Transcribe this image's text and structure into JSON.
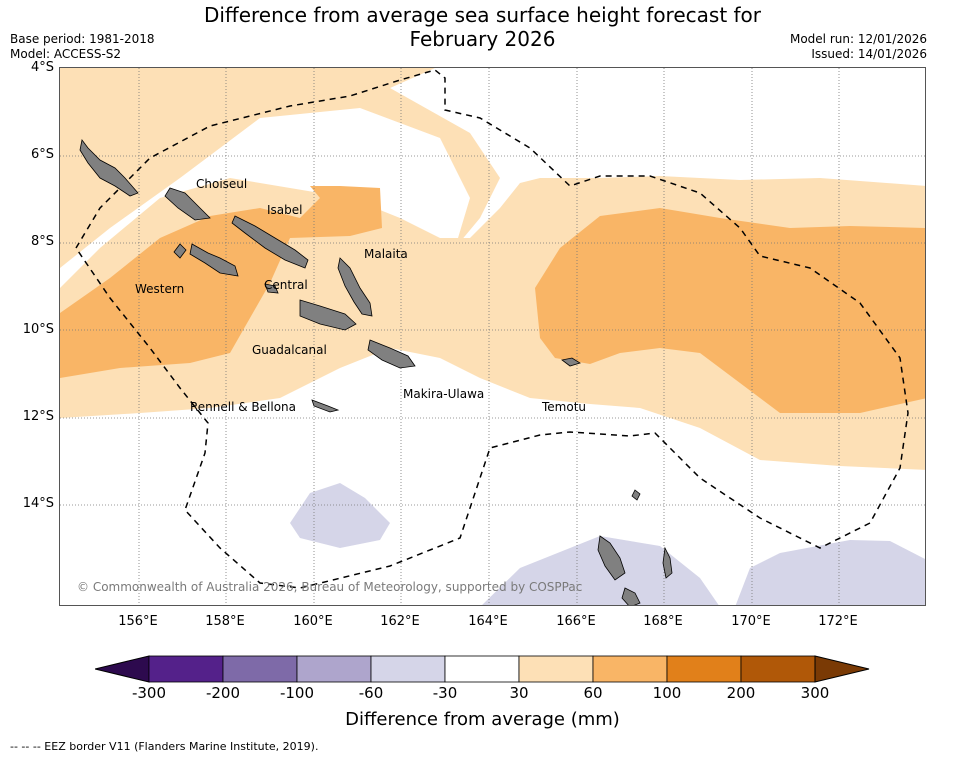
{
  "header": {
    "title_line1": "Difference from average sea surface height forecast for",
    "title_line2": "February 2026",
    "base_period": "Base period: 1981-2018",
    "model": "Model: ACCESS-S2",
    "model_run": "Model run: 12/01/2026",
    "issued": "Issued: 14/01/2026"
  },
  "map": {
    "lat_labels": [
      "4°S",
      "6°S",
      "8°S",
      "10°S",
      "12°S",
      "14°S"
    ],
    "lon_labels": [
      "156°E",
      "158°E",
      "160°E",
      "162°E",
      "164°E",
      "166°E",
      "168°E",
      "170°E",
      "172°E"
    ],
    "places": {
      "choiseul": "Choiseul",
      "isabel": "Isabel",
      "malaita": "Malaita",
      "western": "Western",
      "central": "Central",
      "guadalcanal": "Guadalcanal",
      "makira": "Makira-Ulawa",
      "rennell": "Rennell & Bellona",
      "temotu": "Temotu"
    },
    "copyright": "© Commonwealth of Australia 2026, Bureau of Meteorology, supported by COSPPac"
  },
  "colorbar": {
    "ticks": [
      "-300",
      "-200",
      "-100",
      "-60",
      "-30",
      "30",
      "60",
      "100",
      "200",
      "300"
    ],
    "colors": [
      "#2d0a4e",
      "#54218a",
      "#7e6aa8",
      "#aea5cc",
      "#d5d5e8",
      "#ffffff",
      "#fde0b6",
      "#f9b566",
      "#e1801a",
      "#b05808",
      "#7a3a05"
    ],
    "title": "Difference from average (mm)"
  },
  "legend": {
    "eez_note": "--  --  -- EEZ border V11 (Flanders Marine Institute, 2019)."
  }
}
